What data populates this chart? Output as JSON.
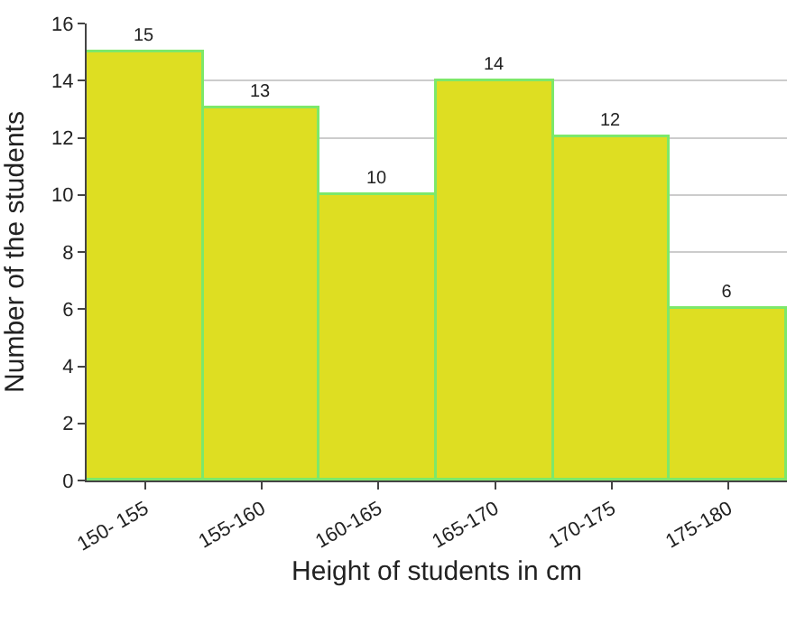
{
  "chart_data": {
    "type": "bar",
    "xlabel": "Height of students in cm",
    "ylabel": "Number of the students",
    "categories": [
      "150- 155",
      "155-160",
      "160-165",
      "165-170",
      "170-175",
      "175-180"
    ],
    "values": [
      15,
      13,
      10,
      14,
      12,
      6
    ],
    "color": "#dede22",
    "ylim": [
      0,
      16
    ],
    "yticks": [
      0,
      2,
      4,
      6,
      8,
      10,
      12,
      14,
      16
    ],
    "grid": "y",
    "data_labels": true,
    "legend": false
  }
}
